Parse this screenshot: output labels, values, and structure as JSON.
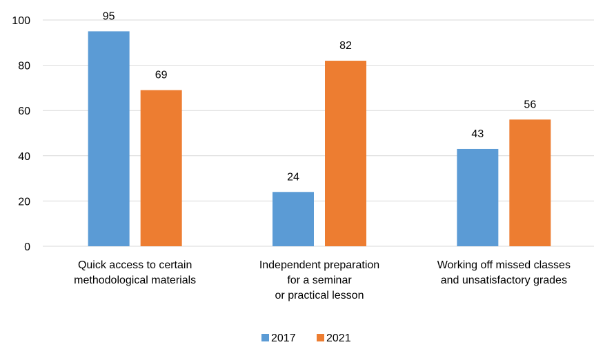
{
  "chart_data": {
    "type": "bar",
    "categories": [
      [
        "Quick access to certain",
        "methodological materials"
      ],
      [
        "Independent preparation",
        "for a seminar",
        "or practical lesson"
      ],
      [
        "Working off missed classes",
        "and unsatisfactory grades"
      ]
    ],
    "series": [
      {
        "name": "2017",
        "values": [
          95,
          24,
          43
        ],
        "color": "#5b9bd5"
      },
      {
        "name": "2021",
        "values": [
          69,
          82,
          56
        ],
        "color": "#ed7d31"
      }
    ],
    "yticks": [
      0,
      20,
      40,
      60,
      80,
      100
    ],
    "ylim": [
      0,
      100
    ],
    "grid": true,
    "legend_position": "bottom"
  }
}
